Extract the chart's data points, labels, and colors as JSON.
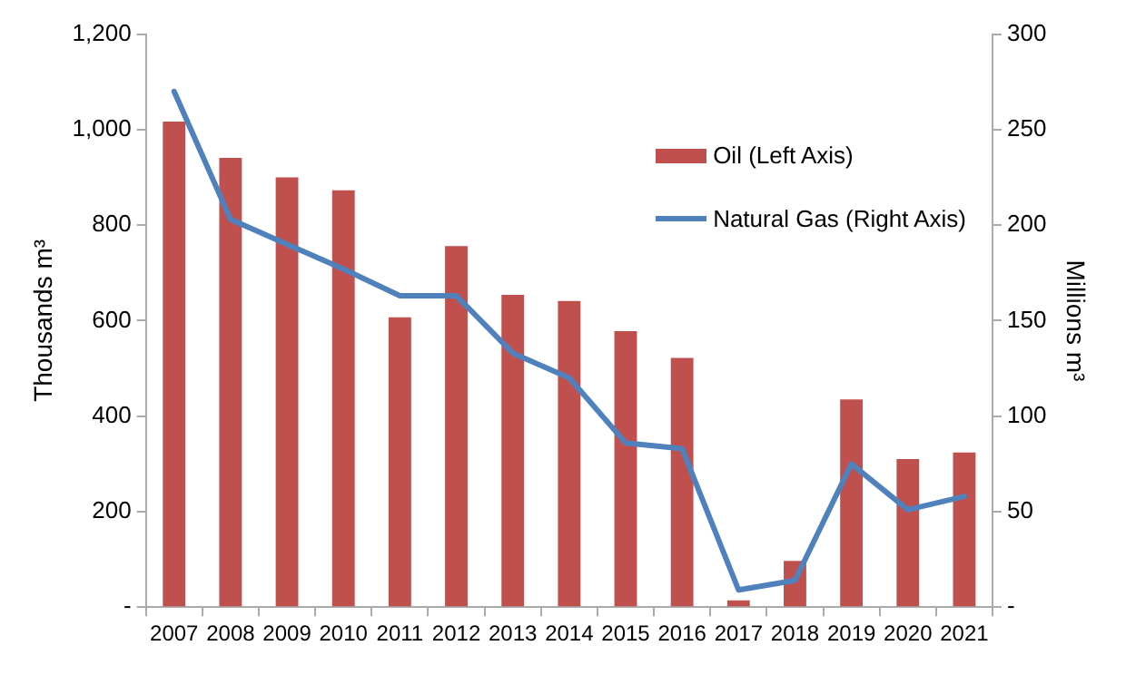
{
  "chart_data": {
    "type": "bar",
    "ylabel": "Thousands m³",
    "y2label": "Millions m³",
    "categories": [
      "2007",
      "2008",
      "2009",
      "2010",
      "2011",
      "2012",
      "2013",
      "2014",
      "2015",
      "2016",
      "2017",
      "2018",
      "2019",
      "2020",
      "2021"
    ],
    "series": [
      {
        "name": "Oil (Left Axis)",
        "color": "#c0504d",
        "values": [
          1017,
          941,
          900,
          873,
          607,
          756,
          654,
          641,
          578,
          522,
          14,
          97,
          435,
          310,
          324
        ]
      },
      {
        "name": "Natural Gas (Right Axis)",
        "type": "line",
        "axis": "y2",
        "color": "#4f81bd",
        "values": [
          270,
          203,
          190,
          177,
          163,
          163,
          133,
          120,
          86,
          83,
          9,
          14,
          75,
          51,
          58
        ]
      }
    ],
    "ylim": [
      0,
      1200
    ],
    "yticks": [
      {
        "value": 0,
        "label": "-"
      },
      200,
      400,
      600,
      800,
      {
        "value": 1000,
        "label": "1,000"
      },
      {
        "value": 1200,
        "label": "1,200"
      }
    ],
    "y2lim": [
      0,
      300
    ],
    "y2ticks": [
      {
        "value": 0,
        "label": "-"
      },
      50,
      100,
      150,
      200,
      250,
      300
    ],
    "grid": false,
    "legend": "top right",
    "marker": "none",
    "line_style": "solid"
  }
}
